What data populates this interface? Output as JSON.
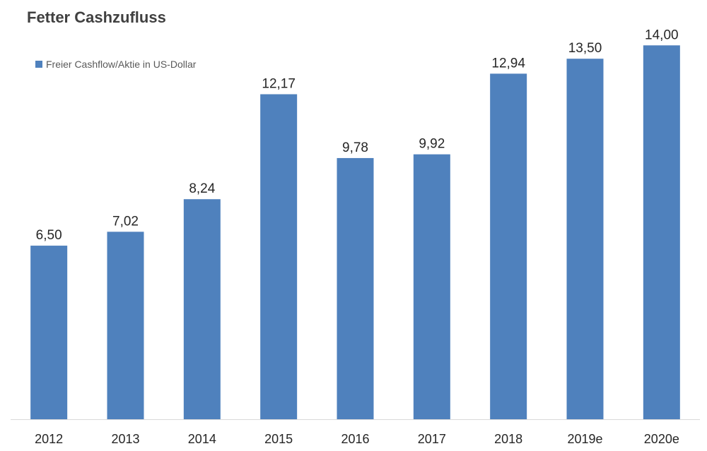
{
  "chart_data": {
    "type": "bar",
    "title": "Fetter Cashzufluss",
    "categories": [
      "2012",
      "2013",
      "2014",
      "2015",
      "2016",
      "2017",
      "2018",
      "2019e",
      "2020e"
    ],
    "series": [
      {
        "name": "Freier Cashflow/Aktie in US-Dollar",
        "values": [
          6.5,
          7.02,
          8.24,
          12.17,
          9.78,
          9.92,
          12.94,
          13.5,
          14.0
        ],
        "labels": [
          "6,50",
          "7,02",
          "8,24",
          "12,17",
          "9,78",
          "9,92",
          "12,94",
          "13,50",
          "14,00"
        ],
        "color": "#4F81BD"
      }
    ],
    "xlabel": "",
    "ylabel": "",
    "ylim": [
      0,
      14.8
    ],
    "grid": false,
    "legend_position": "top-left",
    "axis_color": "#d9d9d9"
  }
}
